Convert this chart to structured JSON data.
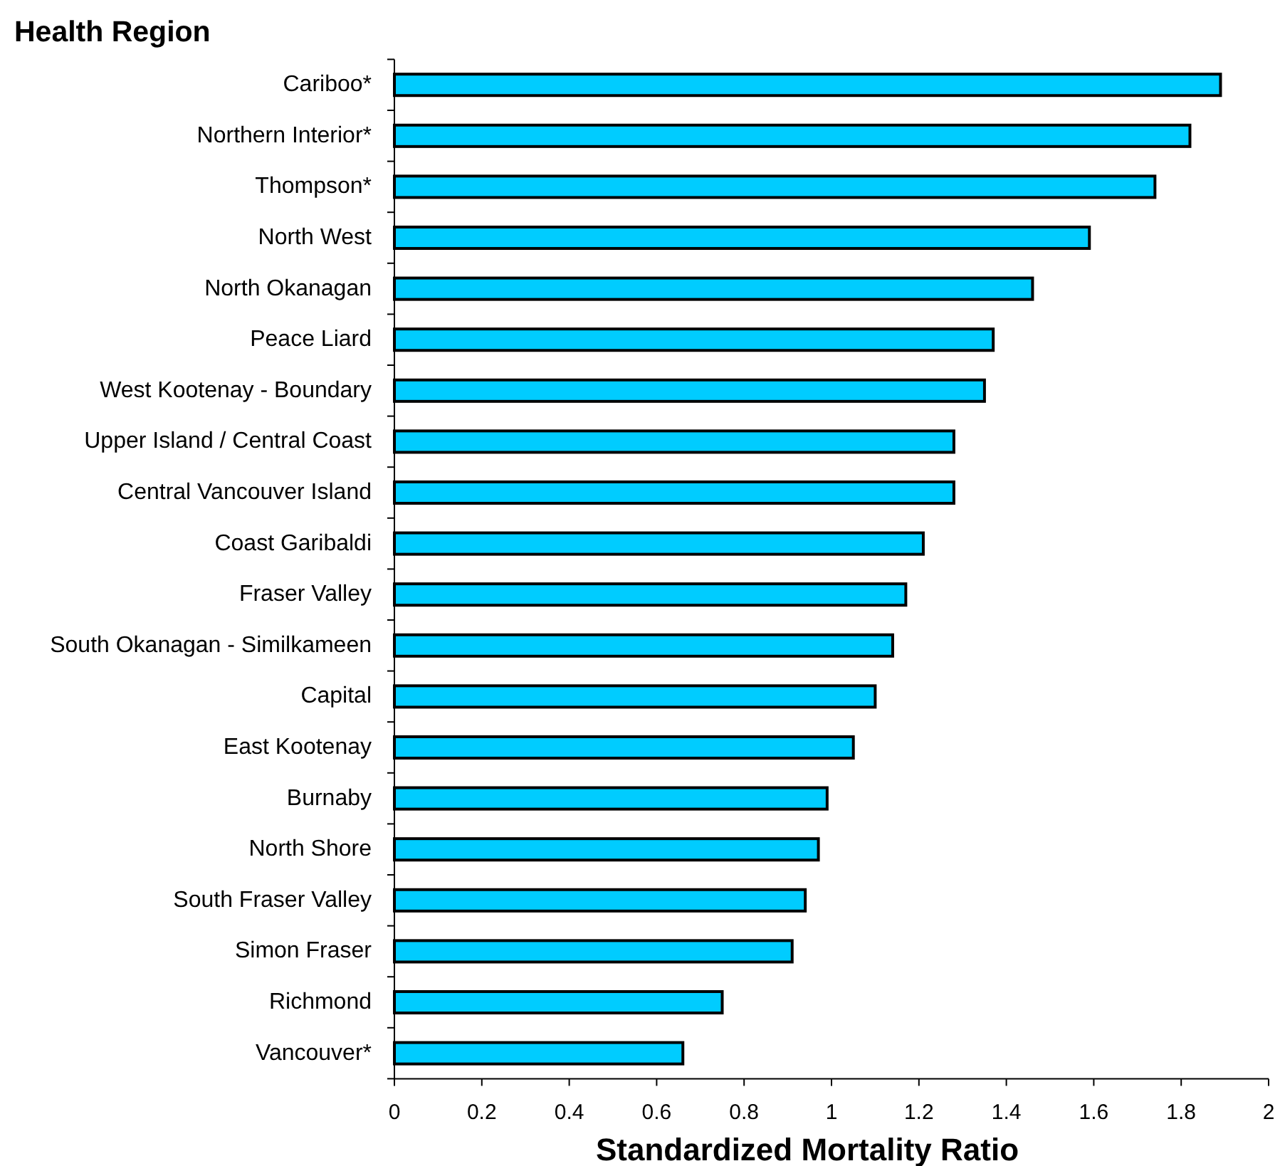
{
  "chart_data": {
    "type": "bar",
    "orientation": "horizontal",
    "ylabel": "Health Region",
    "xlabel": "Standardized Mortality Ratio",
    "categories": [
      "Cariboo*",
      "Northern Interior*",
      "Thompson*",
      "North West",
      "North Okanagan",
      "Peace Liard",
      "West Kootenay - Boundary",
      "Upper Island / Central Coast",
      "Central Vancouver Island",
      "Coast Garibaldi",
      "Fraser Valley",
      "South Okanagan - Similkameen",
      "Capital",
      "East Kootenay",
      "Burnaby",
      "North Shore",
      "South Fraser Valley",
      "Simon Fraser",
      "Richmond",
      "Vancouver*"
    ],
    "values": [
      1.89,
      1.82,
      1.74,
      1.59,
      1.46,
      1.37,
      1.35,
      1.28,
      1.28,
      1.21,
      1.17,
      1.14,
      1.1,
      1.05,
      0.99,
      0.97,
      0.94,
      0.91,
      0.75,
      0.66
    ],
    "color": "#00ccff",
    "xlim": [
      0,
      2
    ],
    "xticks": [
      0,
      0.2,
      0.4,
      0.6,
      0.8,
      1,
      1.2,
      1.4,
      1.6,
      1.8,
      2
    ]
  }
}
